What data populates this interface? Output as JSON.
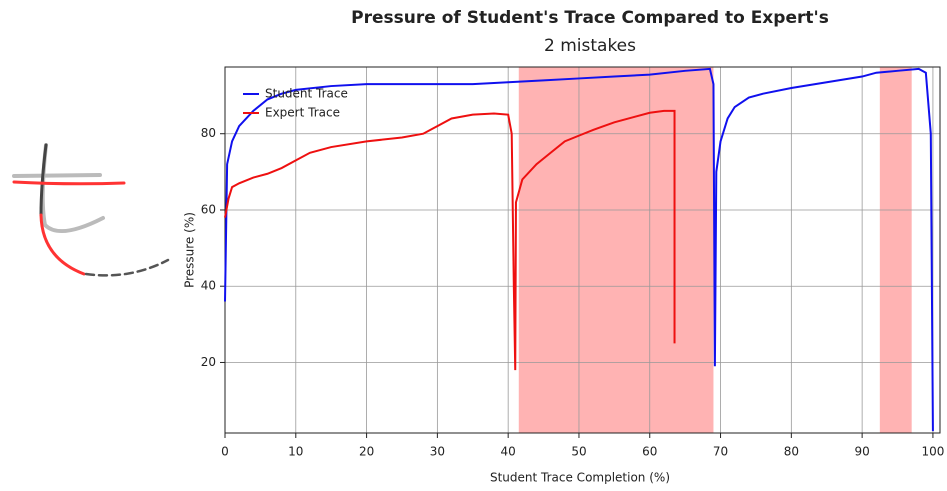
{
  "chart_data": {
    "type": "line",
    "title": "Pressure of Student's Trace Compared to Expert's",
    "subtitle": "2 mistakes",
    "x_label": "Student Trace Completion (%)",
    "y_label": "Pressure (%)",
    "xlim": [
      0,
      101
    ],
    "ylim": [
      1.5,
      97.5
    ],
    "xticks": [
      0,
      10,
      20,
      30,
      40,
      50,
      60,
      70,
      80,
      90,
      100
    ],
    "yticks": [
      20,
      40,
      60,
      80
    ],
    "grid": true,
    "legend": "top-left",
    "highlight_color": "#ff9a9a",
    "highlight_ranges": [
      [
        41.5,
        69
      ],
      [
        92.5,
        97
      ]
    ],
    "series": [
      {
        "name": "Student Trace",
        "color": "#1010ee",
        "x": [
          0,
          0.3,
          1,
          2,
          4,
          6,
          8,
          10,
          15,
          20,
          25,
          30,
          35,
          40,
          45,
          50,
          55,
          60,
          65,
          68.5,
          69,
          69.2,
          69.4,
          70,
          71,
          72,
          74,
          76,
          80,
          85,
          90,
          92,
          95,
          98,
          99,
          99.7,
          100
        ],
        "values": [
          36,
          72,
          78,
          82,
          86,
          89,
          90.5,
          91.5,
          92.5,
          93,
          93,
          93,
          93,
          93.5,
          94,
          94.5,
          95,
          95.5,
          96.5,
          97,
          93,
          19,
          70,
          78,
          84,
          87,
          89.5,
          90.5,
          92,
          93.5,
          95,
          96,
          96.5,
          97,
          96,
          80,
          2
        ]
      },
      {
        "name": "Expert Trace",
        "color": "#ee1010",
        "x": [
          0,
          0.5,
          1,
          2,
          4,
          6,
          8,
          10,
          12,
          15,
          20,
          25,
          28,
          30,
          32,
          35,
          38,
          40,
          40.5,
          40.8,
          41,
          41.1,
          42,
          44,
          46,
          48,
          50,
          52,
          55,
          58,
          60,
          62,
          63.5,
          63.5
        ],
        "values": [
          58,
          63,
          66,
          67,
          68.5,
          69.5,
          71,
          73,
          75,
          76.5,
          78,
          79,
          80,
          82,
          84,
          85,
          85.3,
          85,
          80,
          40,
          18,
          62,
          68,
          72,
          75,
          78,
          79.5,
          81,
          83,
          84.5,
          85.5,
          86,
          86,
          25
        ]
      }
    ]
  }
}
